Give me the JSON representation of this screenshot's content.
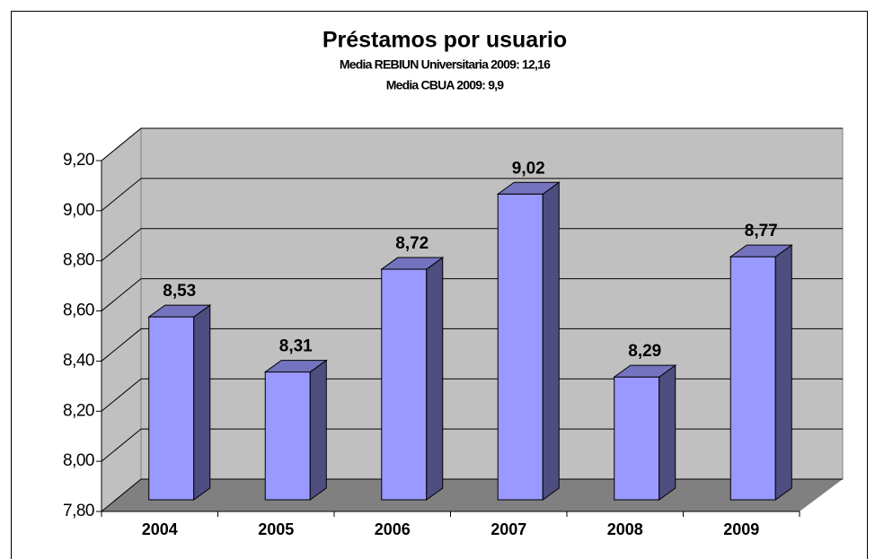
{
  "chart_data": {
    "type": "bar3d",
    "title": "Préstamos por usuario",
    "subtitle": [
      "Media REBIUN Universitaria 2009: 12,16",
      "Media CBUA 2009: 9,9"
    ],
    "categories": [
      "2004",
      "2005",
      "2006",
      "2007",
      "2008",
      "2009"
    ],
    "values": [
      8.53,
      8.31,
      8.72,
      9.02,
      8.29,
      8.77
    ],
    "value_labels": [
      "8,53",
      "8,31",
      "8,72",
      "9,02",
      "8,29",
      "8,77"
    ],
    "color": "#9999ff",
    "ylim": [
      7.8,
      9.2
    ],
    "yticks": [
      {
        "value": 7.8,
        "label": "7,80"
      },
      {
        "value": 8.0,
        "label": "8,00"
      },
      {
        "value": 8.2,
        "label": "8,20"
      },
      {
        "value": 8.4,
        "label": "8,40"
      },
      {
        "value": 8.6,
        "label": "8,60"
      },
      {
        "value": 8.8,
        "label": "8,80"
      },
      {
        "value": 9.0,
        "label": "9,00"
      },
      {
        "value": 9.2,
        "label": "9,20"
      }
    ],
    "grid": true
  }
}
